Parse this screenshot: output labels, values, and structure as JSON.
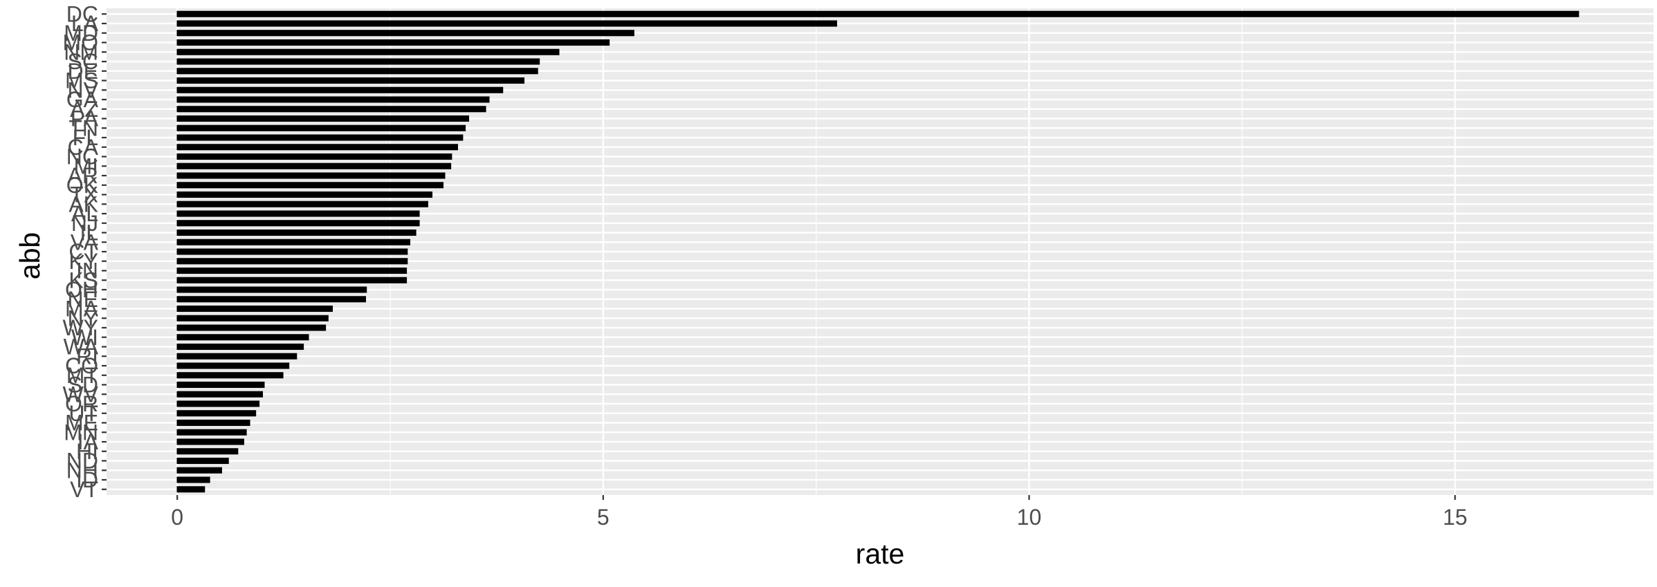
{
  "chart_data": {
    "type": "bar",
    "orientation": "horizontal",
    "xlabel": "rate",
    "ylabel": "abb",
    "xlim": [
      -0.83,
      17.33
    ],
    "x_ticks": [
      0,
      5,
      10,
      15
    ],
    "x_tick_labels": [
      "0",
      "5",
      "10",
      "15"
    ],
    "grid": true,
    "colors": {
      "panel": "#ebebeb",
      "grid": "#ffffff",
      "bar_fill": "#000000",
      "bar_outline": "#000000",
      "tick_label": "#4d4d4d",
      "axis_title": "#000000"
    },
    "categories": [
      "DC",
      "LA",
      "MD",
      "MO",
      "NM",
      "SC",
      "DE",
      "MS",
      "NV",
      "GA",
      "AZ",
      "PA",
      "TN",
      "FL",
      "CA",
      "NC",
      "MI",
      "AR",
      "OK",
      "TX",
      "AK",
      "AL",
      "NJ",
      "IL",
      "VA",
      "CT",
      "KY",
      "IN",
      "KS",
      "OH",
      "NE",
      "MA",
      "NY",
      "WY",
      "WI",
      "WA",
      "RI",
      "CO",
      "MT",
      "SD",
      "WV",
      "OR",
      "UT",
      "ME",
      "MN",
      "IA",
      "HI",
      "ND",
      "NH",
      "ID",
      "VT"
    ],
    "values": [
      16.45,
      7.74,
      5.36,
      5.07,
      4.48,
      4.25,
      4.23,
      4.07,
      3.82,
      3.66,
      3.62,
      3.42,
      3.38,
      3.35,
      3.29,
      3.22,
      3.21,
      3.14,
      3.12,
      2.99,
      2.94,
      2.84,
      2.84,
      2.8,
      2.73,
      2.7,
      2.7,
      2.69,
      2.69,
      2.22,
      2.21,
      1.82,
      1.77,
      1.74,
      1.54,
      1.48,
      1.4,
      1.31,
      1.24,
      1.02,
      1.0,
      0.96,
      0.92,
      0.85,
      0.81,
      0.78,
      0.71,
      0.6,
      0.52,
      0.38,
      0.32
    ]
  }
}
